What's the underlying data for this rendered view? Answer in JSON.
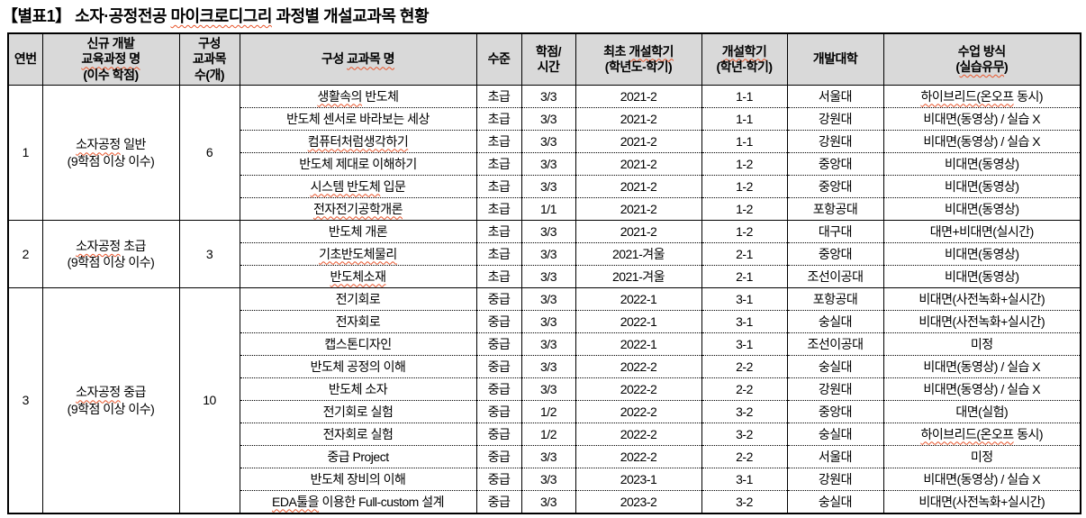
{
  "colors": {
    "header_bg": "#d9d9d9",
    "border": "#000000",
    "spellcheck_underline": "#e8542a",
    "text": "#000000"
  },
  "title": {
    "segments": [
      [
        "【별표1】 소자·공정전공 ",
        false
      ],
      [
        "마이크로디그리",
        true
      ],
      [
        " 과정별 개설교과목 현황",
        false
      ]
    ]
  },
  "table": {
    "columns": [
      {
        "key": "no",
        "lines": [
          [
            [
              "연번",
              false
            ]
          ]
        ]
      },
      {
        "key": "program",
        "lines": [
          [
            [
              "신규 개발",
              false
            ]
          ],
          [
            [
              "교육과정 명",
              true
            ]
          ],
          [
            [
              "(이수 학점)",
              false
            ]
          ]
        ]
      },
      {
        "key": "count",
        "lines": [
          [
            [
              "구성",
              false
            ]
          ],
          [
            [
              "교과목",
              false
            ]
          ],
          [
            [
              "수(개)",
              false
            ]
          ]
        ]
      },
      {
        "key": "name",
        "lines": [
          [
            [
              "구성 ",
              false
            ],
            [
              "교과목 명",
              true
            ]
          ]
        ]
      },
      {
        "key": "level",
        "lines": [
          [
            [
              "수준",
              false
            ]
          ]
        ]
      },
      {
        "key": "credit",
        "lines": [
          [
            [
              "학점/",
              false
            ]
          ],
          [
            [
              "시간",
              false
            ]
          ]
        ]
      },
      {
        "key": "first_term",
        "lines": [
          [
            [
              "최초 ",
              false
            ],
            [
              "개설학기",
              true
            ]
          ],
          [
            [
              "(학년도-학기)",
              false
            ]
          ]
        ]
      },
      {
        "key": "term",
        "lines": [
          [
            [
              "개설학기",
              true
            ]
          ],
          [
            [
              "(학년-학기)",
              false
            ]
          ]
        ]
      },
      {
        "key": "univ",
        "lines": [
          [
            [
              "개발대학",
              false
            ]
          ]
        ]
      },
      {
        "key": "method",
        "lines": [
          [
            [
              "수업 방식",
              false
            ]
          ],
          [
            [
              "(",
              false
            ],
            [
              "실습유무",
              true
            ],
            [
              ")",
              false
            ]
          ]
        ]
      }
    ],
    "groups": [
      {
        "no": "1",
        "program_lines": [
          [
            [
              "소자공정",
              true
            ],
            [
              " 일반",
              false
            ]
          ],
          [
            [
              "(9학점 이상 이수)",
              false
            ]
          ]
        ],
        "count": "6",
        "courses": [
          {
            "name": [
              [
                "생활속의",
                true
              ],
              [
                " 반도체",
                false
              ]
            ],
            "level": "초급",
            "credit": "3/3",
            "first_term": "2021-2",
            "term": "1-1",
            "univ": "서울대",
            "method": [
              [
                "하이브리드(온오프",
                true
              ],
              [
                " 동시)",
                false
              ]
            ]
          },
          {
            "name": [
              [
                "반도체 센서로 바라보는 세상",
                false
              ]
            ],
            "level": "초급",
            "credit": "3/3",
            "first_term": "2021-2",
            "term": "1-1",
            "univ": "강원대",
            "method": [
              [
                "비대면(동영상) / 실습 X",
                false
              ]
            ]
          },
          {
            "name": [
              [
                "컴퓨터처럼생각하기",
                true
              ]
            ],
            "level": "초급",
            "credit": "3/3",
            "first_term": "2021-2",
            "term": "1-1",
            "univ": "강원대",
            "method": [
              [
                "비대면(동영상) / 실습 X",
                false
              ]
            ]
          },
          {
            "name": [
              [
                "반도체 제대로 이해하기",
                false
              ]
            ],
            "level": "초급",
            "credit": "3/3",
            "first_term": "2021-2",
            "term": "1-2",
            "univ": "중앙대",
            "method": [
              [
                "비대면(동영상)",
                false
              ]
            ]
          },
          {
            "name": [
              [
                "시스템 반도체",
                true
              ],
              [
                " 입문",
                false
              ]
            ],
            "level": "초급",
            "credit": "3/3",
            "first_term": "2021-2",
            "term": "1-2",
            "univ": "중앙대",
            "method": [
              [
                "비대면(동영상)",
                false
              ]
            ]
          },
          {
            "name": [
              [
                "전자전기공학개론",
                true
              ]
            ],
            "level": "초급",
            "credit": "1/1",
            "first_term": "2021-2",
            "term": "1-2",
            "univ": "포항공대",
            "method": [
              [
                "비대면(동영상)",
                false
              ]
            ]
          }
        ]
      },
      {
        "no": "2",
        "program_lines": [
          [
            [
              "소자공정",
              true
            ],
            [
              " 초급",
              false
            ]
          ],
          [
            [
              "(9학점 이상 이수)",
              false
            ]
          ]
        ],
        "count": "3",
        "courses": [
          {
            "name": [
              [
                "반도체 개론",
                false
              ]
            ],
            "level": "초급",
            "credit": "3/3",
            "first_term": "2021-2",
            "term": "1-2",
            "univ": "대구대",
            "method": [
              [
                "대면+비대면(실시간)",
                false
              ]
            ]
          },
          {
            "name": [
              [
                "기초반도체물리",
                true
              ]
            ],
            "level": "초급",
            "credit": "3/3",
            "first_term": "2021-겨울",
            "term": "2-1",
            "univ": "중앙대",
            "method": [
              [
                "비대면(동영상)",
                false
              ]
            ]
          },
          {
            "name": [
              [
                "반도체소재",
                true
              ]
            ],
            "level": "초급",
            "credit": "3/3",
            "first_term": "2021-겨울",
            "term": "2-1",
            "univ": "조선이공대",
            "method": [
              [
                "비대면(동영상)",
                false
              ]
            ]
          }
        ]
      },
      {
        "no": "3",
        "program_lines": [
          [
            [
              "소자공정",
              true
            ],
            [
              " 중급",
              false
            ]
          ],
          [
            [
              "(9학점 이상 이수)",
              false
            ]
          ]
        ],
        "count": "10",
        "courses": [
          {
            "name": [
              [
                "전기회로",
                false
              ]
            ],
            "level": "중급",
            "credit": "3/3",
            "first_term": "2022-1",
            "term": "3-1",
            "univ": "포항공대",
            "method": [
              [
                "비대면(사전녹화+실시간)",
                false
              ]
            ]
          },
          {
            "name": [
              [
                "전자회로",
                false
              ]
            ],
            "level": "중급",
            "credit": "3/3",
            "first_term": "2022-1",
            "term": "3-1",
            "univ": "숭실대",
            "method": [
              [
                "비대면(사전녹화+실시간)",
                false
              ]
            ]
          },
          {
            "name": [
              [
                "캡스톤디자인",
                false
              ]
            ],
            "level": "중급",
            "credit": "3/3",
            "first_term": "2022-1",
            "term": "3-1",
            "univ": "조선이공대",
            "method": [
              [
                "미정",
                false
              ]
            ]
          },
          {
            "name": [
              [
                "반도체 공정의 이해",
                false
              ]
            ],
            "level": "중급",
            "credit": "3/3",
            "first_term": "2022-2",
            "term": "2-2",
            "univ": "숭실대",
            "method": [
              [
                "비대면(동영상) / 실습 X",
                false
              ]
            ]
          },
          {
            "name": [
              [
                "반도체 소자",
                false
              ]
            ],
            "level": "중급",
            "credit": "3/3",
            "first_term": "2022-2",
            "term": "2-2",
            "univ": "강원대",
            "method": [
              [
                "비대면(동영상) / 실습 X",
                false
              ]
            ]
          },
          {
            "name": [
              [
                "전기회로 실험",
                false
              ]
            ],
            "level": "중급",
            "credit": "1/2",
            "first_term": "2022-2",
            "term": "3-2",
            "univ": "중앙대",
            "method": [
              [
                "대면(실험)",
                false
              ]
            ]
          },
          {
            "name": [
              [
                "전자회로 실험",
                false
              ]
            ],
            "level": "중급",
            "credit": "1/2",
            "first_term": "2022-2",
            "term": "3-2",
            "univ": "숭실대",
            "method": [
              [
                "하이브리드(온오프",
                true
              ],
              [
                " 동시)",
                false
              ]
            ]
          },
          {
            "name": [
              [
                "중급 Project",
                false
              ]
            ],
            "level": "중급",
            "credit": "3/3",
            "first_term": "2022-2",
            "term": "2-2",
            "univ": "서울대",
            "method": [
              [
                "미정",
                false
              ]
            ]
          },
          {
            "name": [
              [
                "반도체 장비의 이해",
                false
              ]
            ],
            "level": "중급",
            "credit": "3/3",
            "first_term": "2023-1",
            "term": "3-1",
            "univ": "강원대",
            "method": [
              [
                "비대면(동영상) / 실습 X",
                false
              ]
            ]
          },
          {
            "name": [
              [
                "EDA툴을",
                true
              ],
              [
                " 이용한 Full-custom 설계",
                false
              ]
            ],
            "level": "중급",
            "credit": "3/3",
            "first_term": "2023-2",
            "term": "3-2",
            "univ": "숭실대",
            "method": [
              [
                "비대면(사전녹화+실시간)",
                false
              ]
            ]
          }
        ]
      }
    ]
  }
}
